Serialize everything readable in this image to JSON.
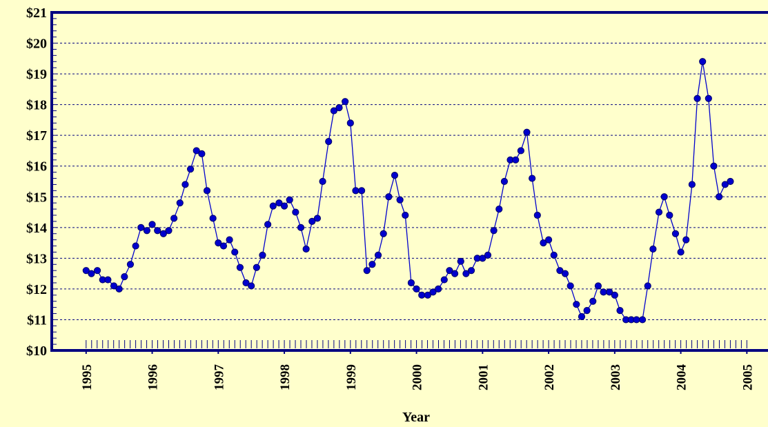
{
  "chart_data": {
    "type": "line",
    "x_label": "Year",
    "x": [
      1995.0,
      1995.08,
      1995.17,
      1995.25,
      1995.33,
      1995.42,
      1995.5,
      1995.58,
      1995.67,
      1995.75,
      1995.83,
      1995.92,
      1996.0,
      1996.08,
      1996.17,
      1996.25,
      1996.33,
      1996.42,
      1996.5,
      1996.58,
      1996.67,
      1996.75,
      1996.83,
      1996.92,
      1997.0,
      1997.08,
      1997.17,
      1997.25,
      1997.33,
      1997.42,
      1997.5,
      1997.58,
      1997.67,
      1997.75,
      1997.83,
      1997.92,
      1998.0,
      1998.08,
      1998.17,
      1998.25,
      1998.33,
      1998.42,
      1998.5,
      1998.58,
      1998.67,
      1998.75,
      1998.83,
      1998.92,
      1999.0,
      1999.08,
      1999.17,
      1999.25,
      1999.33,
      1999.42,
      1999.5,
      1999.58,
      1999.67,
      1999.75,
      1999.83,
      1999.92,
      2000.0,
      2000.08,
      2000.17,
      2000.25,
      2000.33,
      2000.42,
      2000.5,
      2000.58,
      2000.67,
      2000.75,
      2000.83,
      2000.92,
      2001.0,
      2001.08,
      2001.17,
      2001.25,
      2001.33,
      2001.42,
      2001.5,
      2001.58,
      2001.67,
      2001.75,
      2001.83,
      2001.92,
      2002.0,
      2002.08,
      2002.17,
      2002.25,
      2002.33,
      2002.42,
      2002.5,
      2002.58,
      2002.67,
      2002.75,
      2002.83,
      2002.92,
      2003.0,
      2003.08,
      2003.17,
      2003.25,
      2003.33,
      2003.42,
      2003.5,
      2003.58,
      2003.67,
      2003.75,
      2003.83,
      2003.92,
      2004.0,
      2004.08,
      2004.17,
      2004.25,
      2004.33,
      2004.42,
      2004.5,
      2004.58,
      2004.67,
      2004.75
    ],
    "series": [
      {
        "color": "#0000cc",
        "values": [
          12.6,
          12.5,
          12.6,
          12.3,
          12.3,
          12.1,
          12.0,
          12.4,
          12.8,
          13.4,
          14.0,
          13.9,
          14.1,
          13.9,
          13.8,
          13.9,
          14.3,
          14.8,
          15.4,
          15.9,
          16.5,
          16.4,
          15.2,
          14.3,
          13.5,
          13.4,
          13.6,
          13.2,
          12.7,
          12.2,
          12.1,
          12.7,
          13.1,
          14.1,
          14.7,
          14.8,
          14.7,
          14.9,
          14.5,
          14.0,
          13.3,
          14.2,
          14.3,
          15.5,
          16.8,
          17.8,
          17.9,
          18.1,
          17.4,
          15.2,
          15.2,
          12.6,
          12.8,
          13.1,
          13.8,
          15.0,
          15.7,
          14.9,
          14.4,
          12.2,
          12.0,
          11.8,
          11.8,
          11.9,
          12.0,
          12.3,
          12.6,
          12.5,
          12.9,
          12.5,
          12.6,
          13.0,
          13.0,
          13.1,
          13.9,
          14.6,
          15.5,
          16.2,
          16.2,
          16.5,
          17.1,
          15.6,
          14.4,
          13.5,
          13.6,
          13.1,
          12.6,
          12.5,
          12.1,
          11.5,
          11.1,
          11.3,
          11.6,
          12.1,
          11.9,
          11.9,
          11.8,
          11.3,
          11.0,
          11.0,
          11.0,
          11.0,
          12.1,
          13.3,
          14.5,
          15.0,
          14.4,
          13.8,
          13.2,
          13.6,
          15.4,
          18.2,
          19.4,
          18.2,
          16.0,
          15.0,
          15.4,
          15.5
        ]
      }
    ],
    "xlim": [
      1994.48,
      2005.32
    ],
    "xticks": [
      1995,
      1996,
      1997,
      1998,
      1999,
      2000,
      2001,
      2002,
      2003,
      2004,
      2005
    ],
    "ylim": [
      10,
      21
    ],
    "yticks": [
      {
        "value": 10,
        "label": "$10"
      },
      {
        "value": 11,
        "label": "$11"
      },
      {
        "value": 12,
        "label": "$12"
      },
      {
        "value": 13,
        "label": "$13"
      },
      {
        "value": 14,
        "label": "$14"
      },
      {
        "value": 15,
        "label": "$15"
      },
      {
        "value": 16,
        "label": "$16"
      },
      {
        "value": 17,
        "label": "$17"
      },
      {
        "value": 18,
        "label": "$18"
      },
      {
        "value": 19,
        "label": "$19"
      },
      {
        "value": 20,
        "label": "$20"
      },
      {
        "value": 21,
        "label": "$21"
      }
    ],
    "grid": true
  }
}
